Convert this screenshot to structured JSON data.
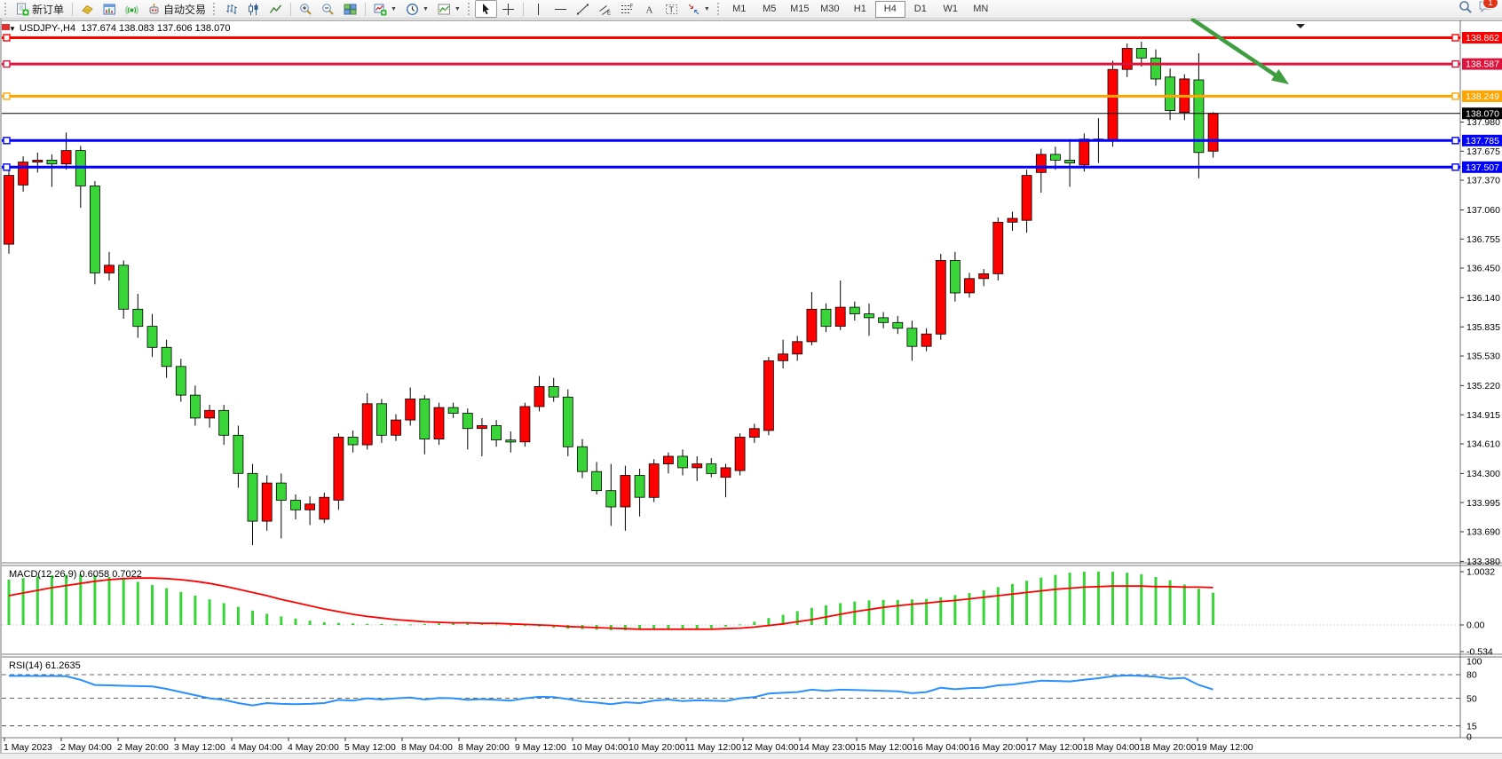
{
  "toolbar": {
    "new_order_label": "新订单",
    "auto_trading_label": "自动交易",
    "timeframes": [
      "M1",
      "M5",
      "M15",
      "M30",
      "H1",
      "H4",
      "D1",
      "W1",
      "MN"
    ],
    "active_timeframe": "H4",
    "notification_badge": "1"
  },
  "chart": {
    "title_symbol": "USDJPY-,H4",
    "title_ohlc": "137.674 138.083 137.606 138.070",
    "colors": {
      "bull": "#ff0000",
      "bear": "#38d438",
      "wick": "#000000",
      "macd_histogram": "#38d438",
      "macd_signal": "#ff0000",
      "rsi_line": "#2a8fff",
      "annotation_arrow": "#3f9e3f",
      "hline_red": "#ff0000",
      "hline_crimson": "#dc143c",
      "hline_orange": "#ffa500",
      "hline_blue": "#0000ff",
      "current_price": "#000000"
    },
    "price_axis": {
      "ticks": [
        "137.980",
        "137.675",
        "137.370",
        "137.060",
        "136.755",
        "136.450",
        "136.140",
        "135.835",
        "135.530",
        "135.220",
        "134.915",
        "134.610",
        "134.300",
        "133.995",
        "133.690",
        "133.380"
      ]
    },
    "time_axis": {
      "labels": [
        "1 May 2023",
        "2 May 04:00",
        "2 May 20:00",
        "3 May 12:00",
        "4 May 04:00",
        "4 May 20:00",
        "5 May 12:00",
        "8 May 04:00",
        "8 May 20:00",
        "9 May 12:00",
        "10 May 04:00",
        "10 May 20:00",
        "11 May 12:00",
        "12 May 04:00",
        "14 May 23:00",
        "15 May 12:00",
        "16 May 04:00",
        "16 May 20:00",
        "17 May 12:00",
        "18 May 04:00",
        "18 May 20:00",
        "19 May 12:00"
      ]
    },
    "hlines": [
      {
        "price": 138.862,
        "label": "138.862",
        "color": "#ff0000"
      },
      {
        "price": 138.587,
        "label": "138.587",
        "color": "#dc143c"
      },
      {
        "price": 138.249,
        "label": "138.249",
        "color": "#ffa500"
      },
      {
        "price": 137.785,
        "label": "137.785",
        "color": "#0000ff"
      },
      {
        "price": 137.507,
        "label": "137.507",
        "color": "#0000ff"
      }
    ],
    "current_price": {
      "price": 138.07,
      "label": "138.070",
      "color": "#000000"
    }
  },
  "chart_data": {
    "type": "candlestick",
    "symbol": "USDJPY-",
    "timeframe": "H4",
    "price_range": [
      133.36,
      139.03
    ],
    "candles": [
      [
        136.7,
        137.48,
        136.6,
        137.42
      ],
      [
        137.32,
        137.62,
        137.25,
        137.56
      ],
      [
        137.56,
        137.66,
        137.45,
        137.58
      ],
      [
        137.58,
        137.64,
        137.3,
        137.54
      ],
      [
        137.54,
        137.87,
        137.48,
        137.68
      ],
      [
        137.68,
        137.73,
        137.08,
        137.31
      ],
      [
        137.31,
        137.36,
        136.28,
        136.4
      ],
      [
        136.4,
        136.62,
        136.32,
        136.48
      ],
      [
        136.48,
        136.53,
        135.92,
        136.02
      ],
      [
        136.02,
        136.18,
        135.72,
        135.84
      ],
      [
        135.84,
        135.97,
        135.52,
        135.62
      ],
      [
        135.62,
        135.7,
        135.3,
        135.42
      ],
      [
        135.42,
        135.5,
        135.05,
        135.12
      ],
      [
        135.12,
        135.22,
        134.8,
        134.88
      ],
      [
        134.88,
        135.02,
        134.78,
        134.96
      ],
      [
        134.96,
        135.02,
        134.6,
        134.7
      ],
      [
        134.7,
        134.8,
        134.15,
        134.3
      ],
      [
        134.3,
        134.4,
        133.55,
        133.8
      ],
      [
        133.8,
        134.28,
        133.7,
        134.2
      ],
      [
        134.2,
        134.3,
        133.62,
        134.02
      ],
      [
        134.02,
        134.08,
        133.82,
        133.92
      ],
      [
        133.92,
        134.06,
        133.76,
        133.98
      ],
      [
        133.82,
        134.1,
        133.78,
        134.05
      ],
      [
        134.02,
        134.72,
        133.92,
        134.68
      ],
      [
        134.68,
        134.75,
        134.52,
        134.6
      ],
      [
        134.6,
        135.14,
        134.55,
        135.03
      ],
      [
        135.03,
        135.08,
        134.62,
        134.7
      ],
      [
        134.7,
        134.92,
        134.64,
        134.86
      ],
      [
        134.86,
        135.2,
        134.8,
        135.08
      ],
      [
        135.08,
        135.12,
        134.5,
        134.66
      ],
      [
        134.66,
        135.04,
        134.6,
        134.99
      ],
      [
        134.99,
        135.04,
        134.88,
        134.93
      ],
      [
        134.93,
        134.98,
        134.55,
        134.77
      ],
      [
        134.77,
        134.88,
        134.48,
        134.8
      ],
      [
        134.8,
        134.86,
        134.58,
        134.65
      ],
      [
        134.65,
        134.74,
        134.52,
        134.63
      ],
      [
        134.63,
        135.04,
        134.58,
        135.0
      ],
      [
        135.0,
        135.32,
        134.95,
        135.21
      ],
      [
        135.21,
        135.3,
        135.05,
        135.1
      ],
      [
        135.1,
        135.18,
        134.48,
        134.58
      ],
      [
        134.58,
        134.66,
        134.25,
        134.32
      ],
      [
        134.32,
        134.42,
        134.08,
        134.12
      ],
      [
        134.12,
        134.4,
        133.75,
        133.95
      ],
      [
        133.95,
        134.38,
        133.7,
        134.28
      ],
      [
        134.28,
        134.35,
        133.85,
        134.05
      ],
      [
        134.05,
        134.45,
        134.0,
        134.4
      ],
      [
        134.4,
        134.52,
        134.3,
        134.48
      ],
      [
        134.48,
        134.55,
        134.28,
        134.36
      ],
      [
        134.36,
        134.48,
        134.22,
        134.4
      ],
      [
        134.4,
        134.46,
        134.26,
        134.3
      ],
      [
        134.26,
        134.4,
        134.05,
        134.36
      ],
      [
        134.33,
        134.72,
        134.28,
        134.68
      ],
      [
        134.68,
        134.82,
        134.62,
        134.77
      ],
      [
        134.75,
        135.52,
        134.7,
        135.48
      ],
      [
        135.48,
        135.7,
        135.4,
        135.55
      ],
      [
        135.55,
        135.74,
        135.48,
        135.68
      ],
      [
        135.68,
        136.2,
        135.64,
        136.02
      ],
      [
        136.02,
        136.08,
        135.78,
        135.84
      ],
      [
        135.84,
        136.32,
        135.8,
        136.04
      ],
      [
        136.04,
        136.1,
        135.9,
        135.97
      ],
      [
        135.97,
        136.08,
        135.74,
        135.93
      ],
      [
        135.93,
        135.99,
        135.82,
        135.88
      ],
      [
        135.88,
        135.95,
        135.76,
        135.82
      ],
      [
        135.82,
        135.9,
        135.48,
        135.63
      ],
      [
        135.63,
        135.82,
        135.58,
        135.76
      ],
      [
        135.76,
        136.6,
        135.7,
        136.53
      ],
      [
        136.53,
        136.62,
        136.1,
        136.19
      ],
      [
        136.19,
        136.4,
        136.14,
        136.34
      ],
      [
        136.34,
        136.44,
        136.26,
        136.39
      ],
      [
        136.39,
        136.98,
        136.32,
        136.93
      ],
      [
        136.93,
        137.04,
        136.84,
        136.97
      ],
      [
        136.95,
        137.48,
        136.82,
        137.42
      ],
      [
        137.45,
        137.7,
        137.24,
        137.64
      ],
      [
        137.64,
        137.72,
        137.48,
        137.58
      ],
      [
        137.58,
        137.8,
        137.3,
        137.55
      ],
      [
        137.53,
        137.86,
        137.46,
        137.8
      ],
      [
        137.8,
        138.02,
        137.55,
        137.78
      ],
      [
        137.78,
        138.62,
        137.72,
        138.53
      ],
      [
        138.53,
        138.8,
        138.45,
        138.75
      ],
      [
        138.75,
        138.82,
        138.56,
        138.65
      ],
      [
        138.65,
        138.74,
        138.36,
        138.43
      ],
      [
        138.45,
        138.54,
        138.0,
        138.1
      ],
      [
        138.08,
        138.48,
        138.0,
        138.43
      ],
      [
        138.42,
        138.7,
        137.39,
        137.66
      ],
      [
        137.674,
        138.083,
        137.606,
        138.07
      ]
    ],
    "macd": {
      "label": "MACD(12,26,9)",
      "value": "0.6058",
      "signal_value": "0.7022",
      "scale_labels": [
        "1.0032",
        "0.00",
        "-0.534"
      ],
      "histogram": [
        0.85,
        0.88,
        0.91,
        0.93,
        0.94,
        0.95,
        0.93,
        0.9,
        0.86,
        0.81,
        0.75,
        0.69,
        0.62,
        0.55,
        0.48,
        0.41,
        0.34,
        0.27,
        0.21,
        0.16,
        0.12,
        0.08,
        0.05,
        0.04,
        0.03,
        0.02,
        0.02,
        0.01,
        0.01,
        0.02,
        0.03,
        0.03,
        0.03,
        0.02,
        0.01,
        0.0,
        -0.02,
        -0.03,
        -0.05,
        -0.07,
        -0.08,
        -0.09,
        -0.1,
        -0.1,
        -0.09,
        -0.08,
        -0.08,
        -0.09,
        -0.08,
        -0.06,
        -0.03,
        0.01,
        0.06,
        0.13,
        0.19,
        0.26,
        0.32,
        0.37,
        0.41,
        0.44,
        0.46,
        0.47,
        0.47,
        0.48,
        0.49,
        0.52,
        0.56,
        0.6,
        0.65,
        0.71,
        0.77,
        0.83,
        0.89,
        0.94,
        0.98,
        1.0,
        1.0032,
        1.0,
        0.98,
        0.95,
        0.9,
        0.84,
        0.76,
        0.68,
        0.6058
      ],
      "signal": [
        0.55,
        0.6,
        0.65,
        0.7,
        0.74,
        0.78,
        0.82,
        0.85,
        0.87,
        0.88,
        0.88,
        0.87,
        0.85,
        0.82,
        0.78,
        0.73,
        0.67,
        0.61,
        0.55,
        0.48,
        0.42,
        0.36,
        0.3,
        0.25,
        0.2,
        0.16,
        0.13,
        0.1,
        0.08,
        0.06,
        0.05,
        0.04,
        0.04,
        0.03,
        0.03,
        0.02,
        0.01,
        0.0,
        -0.01,
        -0.03,
        -0.04,
        -0.05,
        -0.06,
        -0.07,
        -0.08,
        -0.08,
        -0.08,
        -0.08,
        -0.08,
        -0.08,
        -0.07,
        -0.06,
        -0.04,
        -0.01,
        0.02,
        0.06,
        0.1,
        0.15,
        0.2,
        0.25,
        0.29,
        0.33,
        0.36,
        0.39,
        0.41,
        0.44,
        0.46,
        0.49,
        0.52,
        0.55,
        0.58,
        0.61,
        0.64,
        0.67,
        0.69,
        0.71,
        0.72,
        0.73,
        0.73,
        0.73,
        0.72,
        0.72,
        0.71,
        0.71,
        0.7022
      ]
    },
    "rsi": {
      "label": "RSI(14)",
      "value": "61.2635",
      "scale_labels": [
        "100",
        "80",
        "50",
        "15",
        "0"
      ],
      "levels": [
        80,
        50,
        15
      ],
      "values": [
        78.5,
        78.5,
        78.4,
        78.3,
        78.0,
        73.5,
        67,
        66.5,
        66,
        65.5,
        65,
        62,
        58,
        54,
        50,
        48,
        44,
        41,
        44,
        43,
        42.5,
        43,
        44,
        48,
        47,
        50,
        48.5,
        50,
        51,
        48.5,
        50.5,
        50,
        48,
        49,
        48,
        47,
        50,
        52,
        51.5,
        49,
        46,
        44.5,
        42.5,
        45,
        44,
        47,
        48.5,
        46.5,
        47.5,
        47,
        46.5,
        50,
        51.5,
        56,
        57,
        58,
        61,
        59.5,
        61,
        60.5,
        60,
        59.5,
        59,
        56.5,
        58,
        63.5,
        61.5,
        63,
        63.5,
        66.5,
        67.5,
        70,
        72.5,
        72,
        71.5,
        73.5,
        75.5,
        78,
        79,
        78.5,
        77.5,
        75,
        76,
        67,
        61.26
      ]
    }
  },
  "annotation": {
    "shape": "arrow",
    "direction": "down-right",
    "color": "#3f9e3f"
  }
}
